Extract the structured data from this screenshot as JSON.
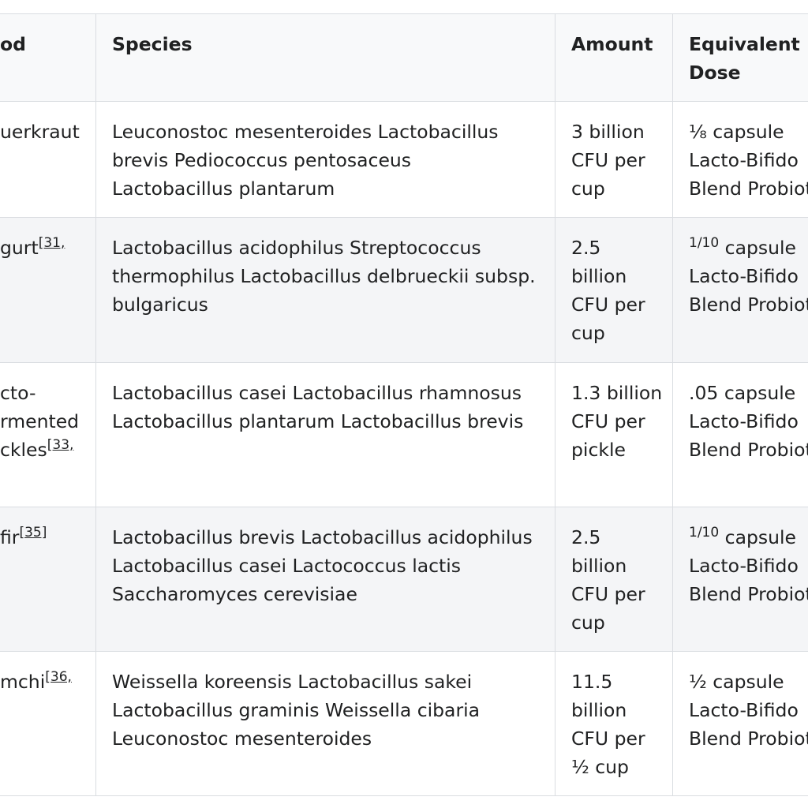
{
  "table": {
    "header": [
      [
        "od"
      ],
      [
        "Species"
      ],
      [
        "Amount"
      ],
      [
        "Equivalent",
        "Dose"
      ]
    ],
    "rows": [
      {
        "food": [
          "uerkraut"
        ],
        "species": [
          "Leuconostoc mesenteroides Lactobacillus",
          "brevis Pediococcus pentosaceus",
          "Lactobacillus plantarum"
        ],
        "amount": [
          "3 billion",
          "CFU per",
          "cup"
        ],
        "dose": [
          "⅛ capsule",
          "Lacto-Bifido",
          "Blend Probiot"
        ]
      },
      {
        "food": [
          "gurt"
        ],
        "ref": "[31,",
        "species": [
          "Lactobacillus acidophilus Streptococcus",
          "thermophilus Lactobacillus delbrueckii subsp.",
          "bulgaricus"
        ],
        "amount": [
          "2.5",
          "billion",
          "CFU per",
          "cup"
        ],
        "dose": [
          {
            "sup": "1/10",
            "text": " capsule"
          },
          "Lacto-Bifido",
          "Blend Probiot"
        ]
      },
      {
        "food": [
          "cto-",
          "rmented",
          "ckles"
        ],
        "ref": "[33,",
        "species": [
          "Lactobacillus casei Lactobacillus rhamnosus",
          "Lactobacillus plantarum Lactobacillus brevis"
        ],
        "amount": [
          "1.3 billion",
          "CFU per",
          "pickle"
        ],
        "dose": [
          ".05 capsule",
          "Lacto-Bifido",
          "Blend Probiot"
        ]
      },
      {
        "food": [
          "fir"
        ],
        "ref": "[35]",
        "species": [
          "Lactobacillus brevis Lactobacillus acidophilus",
          "Lactobacillus casei Lactococcus lactis",
          "Saccharomyces cerevisiae"
        ],
        "amount": [
          "2.5",
          "billion",
          "CFU per",
          "cup"
        ],
        "dose": [
          {
            "sup": "1/10",
            "text": " capsule"
          },
          "Lacto-Bifido",
          "Blend Probiot"
        ]
      },
      {
        "food": [
          "mchi"
        ],
        "ref": "[36,",
        "species": [
          "Weissella koreensis Lactobacillus sakei",
          "Lactobacillus graminis Weissella cibaria",
          "Leuconostoc mesenteroides"
        ],
        "amount": [
          "11.5",
          "billion",
          "CFU per",
          "½ cup"
        ],
        "dose": [
          "½ capsule",
          "Lacto-Bifido",
          "Blend Probiot"
        ]
      }
    ]
  }
}
